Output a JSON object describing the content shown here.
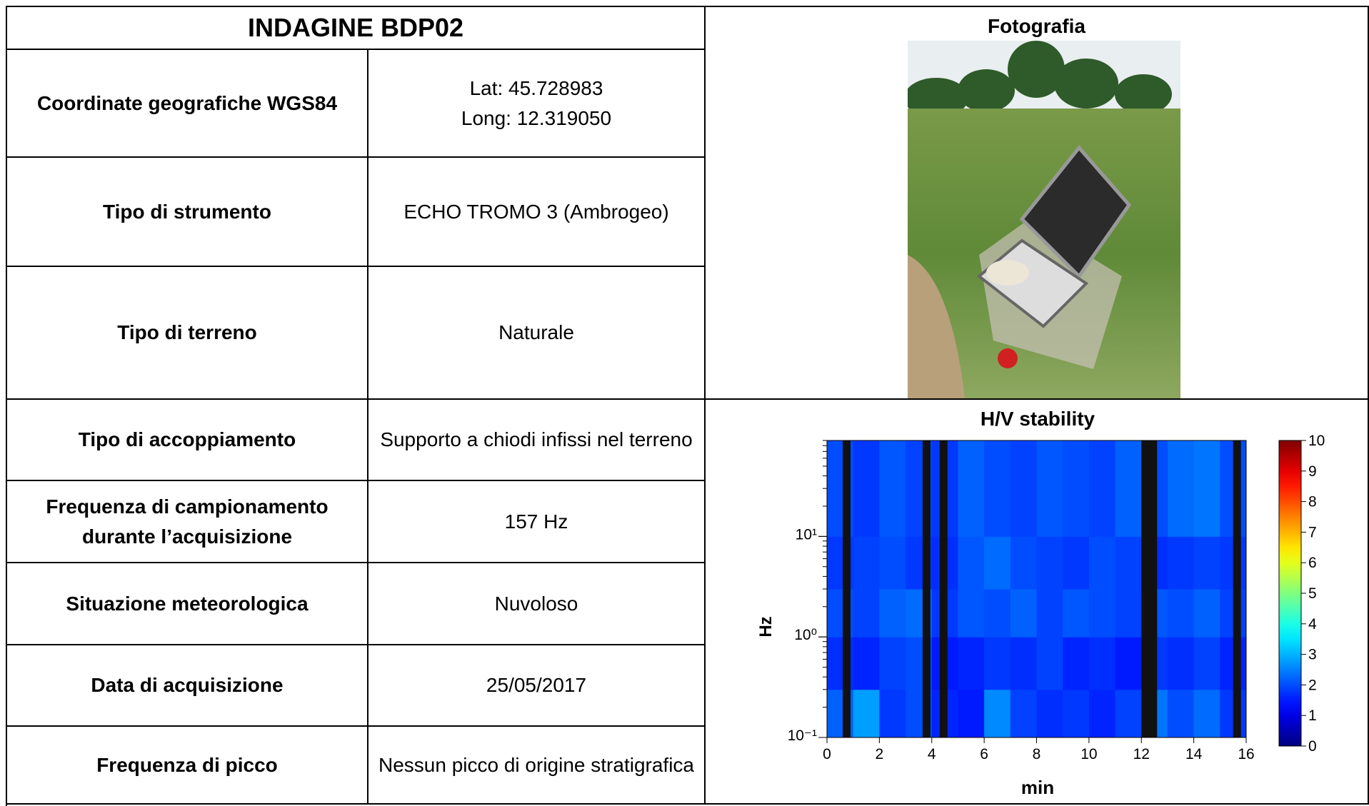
{
  "header": {
    "title": "INDAGINE BDP02"
  },
  "table": {
    "rows": [
      {
        "label": "Coordinate geografiche WGS84",
        "value": [
          "Lat: 45.728983",
          "Long: 12.319050"
        ]
      },
      {
        "label": "Tipo di strumento",
        "value": [
          "ECHO TROMO 3 (Ambrogeo)"
        ]
      },
      {
        "label": "Tipo di terreno",
        "value": [
          "Naturale"
        ]
      },
      {
        "label": "Tipo di accoppiamento",
        "value": [
          "Supporto a chiodi infissi nel terreno"
        ]
      },
      {
        "label": "Frequenza di campionamento durante l’acquisizione",
        "value": [
          "157 Hz"
        ]
      },
      {
        "label": "Situazione meteorologica",
        "value": [
          "Nuvoloso"
        ]
      },
      {
        "label": "Data di acquisizione",
        "value": [
          "25/05/2017"
        ]
      },
      {
        "label": "Frequenza di picco",
        "value": [
          "Nessun picco di origine stratigrafica"
        ]
      }
    ]
  },
  "photo": {
    "title": "Fotografia"
  },
  "chart_data": {
    "type": "heatmap",
    "title": "H/V stability",
    "x_label": "min",
    "y_label": "Hz",
    "xlim": [
      0,
      16
    ],
    "xticks": [
      0,
      2,
      4,
      6,
      8,
      10,
      12,
      14,
      16
    ],
    "ylim": [
      0.1,
      90
    ],
    "log_y": true,
    "yticks": [
      {
        "value": 0.1,
        "label": "10⁻¹"
      },
      {
        "value": 1,
        "label": "10⁰"
      },
      {
        "value": 10,
        "label": "10¹"
      }
    ],
    "x_bins": [
      0,
      1,
      2,
      3,
      4,
      5,
      6,
      7,
      8,
      9,
      10,
      11,
      12,
      13,
      14,
      15,
      16
    ],
    "y_bins": [
      0.1,
      0.3,
      1,
      3,
      10,
      90
    ],
    "values": [
      [
        2.2,
        2.8,
        1.8,
        2.0,
        1.6,
        1.5,
        2.6,
        1.9,
        1.7,
        1.8,
        1.6,
        1.9,
        2.4,
        2.0,
        2.3,
        1.8
      ],
      [
        1.7,
        1.6,
        1.9,
        2.0,
        1.5,
        1.6,
        1.8,
        1.7,
        1.9,
        1.6,
        1.7,
        1.5,
        1.8,
        1.7,
        1.9,
        1.6
      ],
      [
        2.0,
        1.9,
        2.2,
        2.3,
        1.8,
        2.1,
        2.0,
        2.2,
        1.9,
        2.1,
        2.0,
        1.9,
        2.1,
        2.0,
        2.2,
        1.9
      ],
      [
        1.8,
        1.9,
        2.0,
        1.8,
        1.7,
        2.1,
        2.3,
        2.0,
        1.9,
        1.8,
        2.0,
        1.9,
        1.7,
        1.8,
        1.9,
        1.8
      ],
      [
        2.0,
        1.8,
        2.1,
        1.9,
        1.8,
        2.2,
        2.0,
        1.9,
        2.1,
        2.0,
        1.9,
        2.2,
        2.0,
        2.3,
        2.4,
        2.0
      ]
    ],
    "gaps": [
      [
        0.6,
        0.9
      ],
      [
        3.65,
        3.95
      ],
      [
        4.3,
        4.6
      ],
      [
        12.0,
        12.6
      ],
      [
        15.5,
        15.8
      ]
    ],
    "gap_color": "#111111",
    "colormap": "jet",
    "colorlim": [
      0,
      10
    ],
    "colorticks": [
      0,
      1,
      2,
      3,
      4,
      5,
      6,
      7,
      8,
      9,
      10
    ]
  }
}
